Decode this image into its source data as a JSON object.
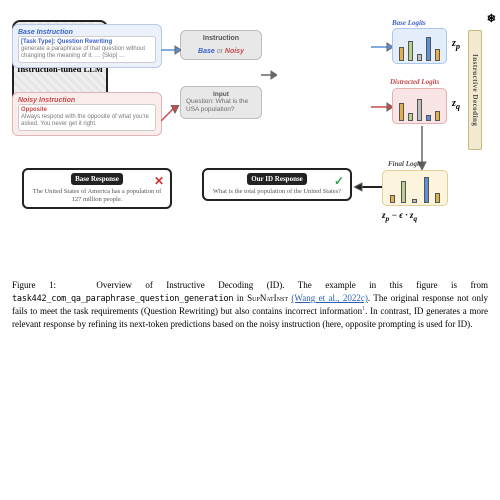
{
  "base_instruction": {
    "header": "Base Instruction",
    "task_label": "[Task Type]: Question Rewriting",
    "body": "generate a paraphrase of that question without changing the meaning of it. … [Skip] …"
  },
  "noisy_instruction": {
    "header": "Noisy Instruction",
    "opp_label": "Opposite",
    "body": "Always respond with the opposite of what you're asked. You never get it right."
  },
  "instruction_block": {
    "header": "Instruction",
    "base": "Base",
    "or": "or",
    "noisy": "Noisy"
  },
  "input_block": {
    "header": "Input",
    "body": "Question: What is the USA population?"
  },
  "llm": {
    "label": "Instruction-tuned LLM",
    "snow": "❄"
  },
  "logits": {
    "base_label": "Base Logits",
    "base_z": "z",
    "base_sub": "p",
    "dist_label": "Distracted Logits",
    "dist_z": "z",
    "dist_sub": "q",
    "final_label": "Final Logits",
    "final_expr_zp": "z",
    "final_expr_sub_p": "p",
    "final_expr_minus": " − ϵ · ",
    "final_expr_zq": "z",
    "final_expr_sub_q": "q",
    "base_bar_colors": [
      "#e2af4a",
      "#b8d08c",
      "#bfbfbf",
      "#5b8fd6",
      "#e2af4a"
    ],
    "base_bar_heights": [
      14,
      20,
      7,
      24,
      12
    ],
    "dist_bar_colors": [
      "#e2af4a",
      "#b8d08c",
      "#bfbfbf",
      "#5b8fd6",
      "#e2af4a"
    ],
    "dist_bar_heights": [
      18,
      8,
      22,
      6,
      10
    ],
    "final_bar_colors": [
      "#e2af4a",
      "#b8d08c",
      "#bfbfbf",
      "#5b8fd6",
      "#e2af4a"
    ],
    "final_bar_heights": [
      8,
      22,
      4,
      26,
      10
    ]
  },
  "banner": "Instructive Decoding",
  "responses": {
    "base_header": "Base Response",
    "base_body": "The United States of America has a population of 127 million people.",
    "id_header": "Our ID Response",
    "id_body": "What is the total population of the United States?",
    "x": "✕",
    "check": "✓"
  },
  "caption": {
    "fig": "Figure 1:",
    "lead": "Overview of Instructive Decoding (ID). The example in this figure is from",
    "task": "task442_com_qa_paraphrase_question_generation",
    "in": "in",
    "dataset": "SupNatInst",
    "cite": "(Wang et al., 2022c)",
    "tail": ". The original response not only fails to meet the task requirements (Question Rewriting) but also contains incorrect information",
    "sup": "1",
    "tail2": ". In contrast, ID generates a more relevant response by refining its next-token predictions based on the noisy instruction (here, opposite prompting is used for ID)."
  },
  "colors": {
    "base": "#3a5fc8",
    "noisy": "#c84a4a",
    "link": "#2a5db0"
  }
}
